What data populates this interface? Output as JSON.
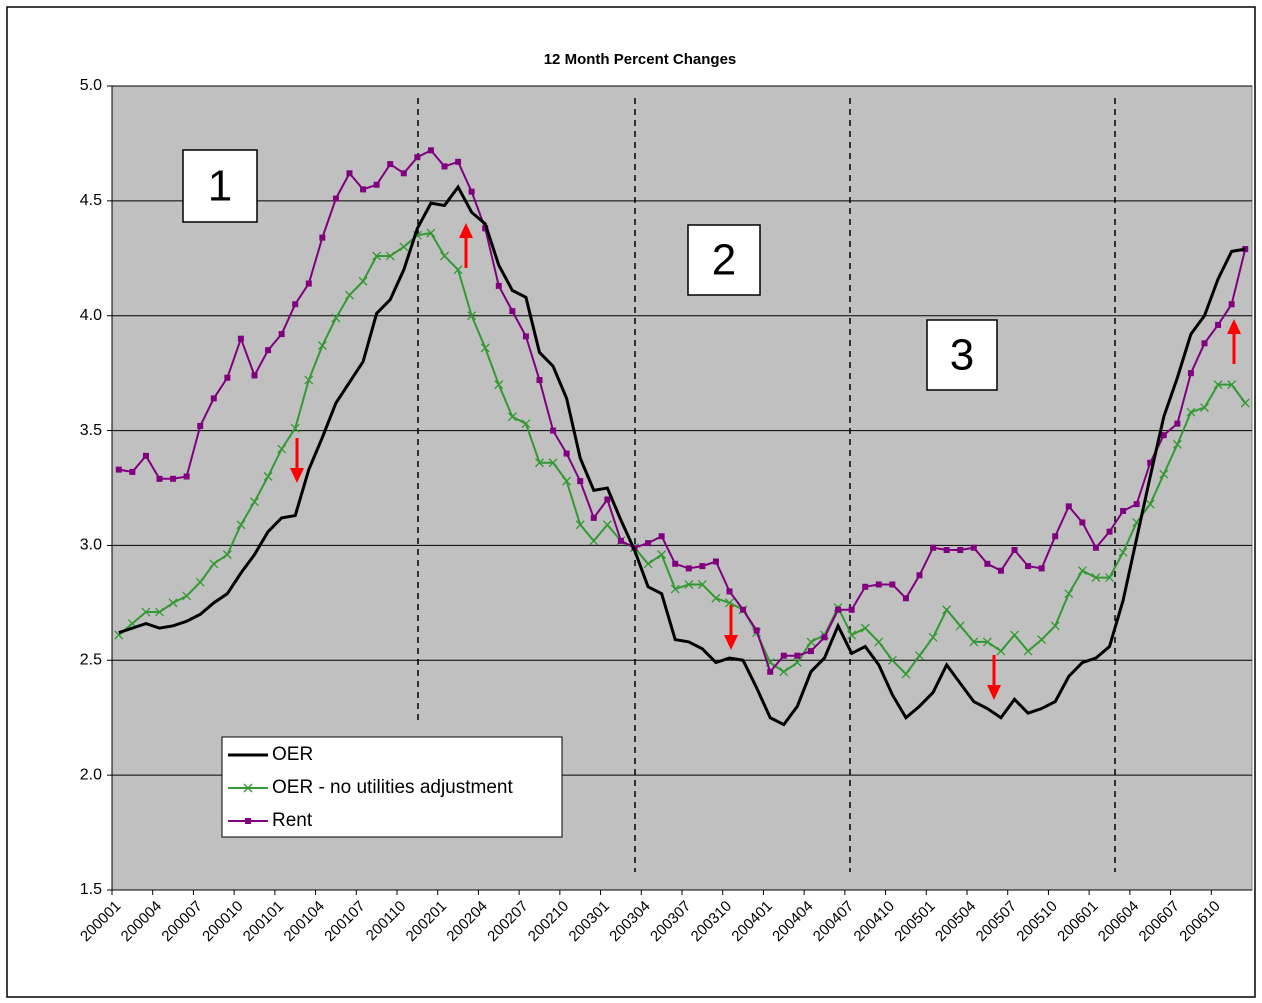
{
  "chart_data": {
    "type": "line",
    "title": "12 Month Percent Changes",
    "categories": [
      "200001",
      null,
      null,
      "200004",
      null,
      null,
      "200007",
      null,
      null,
      "200010",
      null,
      null,
      "200101",
      null,
      null,
      "200104",
      null,
      null,
      "200107",
      null,
      null,
      "200110",
      null,
      null,
      "200201",
      null,
      null,
      "200204",
      null,
      null,
      "200207",
      null,
      null,
      "200210",
      null,
      null,
      "200301",
      null,
      null,
      "200304",
      null,
      null,
      "200307",
      null,
      null,
      "200310",
      null,
      null,
      "200401",
      null,
      null,
      "200404",
      null,
      null,
      "200407",
      null,
      null,
      "200410",
      null,
      null,
      "200501",
      null,
      null,
      "200504",
      null,
      null,
      "200507",
      null,
      null,
      "200510",
      null,
      null,
      "200601",
      null,
      null,
      "200604",
      null,
      null,
      "200607",
      null,
      null,
      "200610",
      null,
      null
    ],
    "series": [
      {
        "name": "OER",
        "color": "#000000",
        "marker": "none",
        "values": [
          2.62,
          2.64,
          2.66,
          2.64,
          2.65,
          2.67,
          2.7,
          2.75,
          2.79,
          2.88,
          2.96,
          3.06,
          3.12,
          3.13,
          3.33,
          3.47,
          3.62,
          3.71,
          3.8,
          4.01,
          4.07,
          4.2,
          4.38,
          4.49,
          4.48,
          4.56,
          4.45,
          4.4,
          4.22,
          4.11,
          4.08,
          3.84,
          3.78,
          3.64,
          3.38,
          3.24,
          3.25,
          3.11,
          2.98,
          2.82,
          2.79,
          2.59,
          2.58,
          2.55,
          2.49,
          2.51,
          2.5,
          2.38,
          2.25,
          2.22,
          2.3,
          2.45,
          2.51,
          2.65,
          2.53,
          2.56,
          2.48,
          2.35,
          2.25,
          2.3,
          2.36,
          2.48,
          2.4,
          2.32,
          2.29,
          2.25,
          2.33,
          2.27,
          2.29,
          2.32,
          2.43,
          2.49,
          2.51,
          2.56,
          2.76,
          3.03,
          3.3,
          3.56,
          3.73,
          3.92,
          4.0,
          4.16,
          4.28,
          4.29
        ]
      },
      {
        "name": "OER - no utilities adjustment",
        "color": "#339933",
        "marker": "x",
        "values": [
          2.61,
          2.66,
          2.71,
          2.71,
          2.75,
          2.78,
          2.84,
          2.92,
          2.96,
          3.09,
          3.19,
          3.3,
          3.42,
          3.51,
          3.72,
          3.87,
          3.99,
          4.09,
          4.15,
          4.26,
          4.26,
          4.3,
          4.35,
          4.36,
          4.26,
          4.2,
          4.0,
          3.86,
          3.7,
          3.56,
          3.53,
          3.36,
          3.36,
          3.28,
          3.09,
          3.02,
          3.09,
          3.02,
          2.99,
          2.92,
          2.96,
          2.81,
          2.83,
          2.83,
          2.77,
          2.75,
          2.72,
          2.62,
          2.49,
          2.45,
          2.49,
          2.58,
          2.61,
          2.73,
          2.61,
          2.64,
          2.58,
          2.5,
          2.44,
          2.52,
          2.6,
          2.72,
          2.65,
          2.58,
          2.58,
          2.54,
          2.61,
          2.54,
          2.59,
          2.65,
          2.79,
          2.89,
          2.86,
          2.86,
          2.97,
          3.1,
          3.18,
          3.31,
          3.44,
          3.58,
          3.6,
          3.7,
          3.7,
          3.62
        ]
      },
      {
        "name": "Rent",
        "color": "#800080",
        "marker": "square",
        "values": [
          3.33,
          3.32,
          3.39,
          3.29,
          3.29,
          3.3,
          3.52,
          3.64,
          3.73,
          3.9,
          3.74,
          3.85,
          3.92,
          4.05,
          4.14,
          4.34,
          4.51,
          4.62,
          4.55,
          4.57,
          4.66,
          4.62,
          4.69,
          4.72,
          4.65,
          4.67,
          4.54,
          4.38,
          4.13,
          4.02,
          3.91,
          3.72,
          3.5,
          3.4,
          3.28,
          3.12,
          3.2,
          3.02,
          2.99,
          3.01,
          3.04,
          2.92,
          2.9,
          2.91,
          2.93,
          2.8,
          2.72,
          2.63,
          2.45,
          2.52,
          2.52,
          2.54,
          2.6,
          2.72,
          2.72,
          2.82,
          2.83,
          2.83,
          2.77,
          2.87,
          2.99,
          2.98,
          2.98,
          2.99,
          2.92,
          2.89,
          2.98,
          2.91,
          2.9,
          3.04,
          3.17,
          3.1,
          2.99,
          3.06,
          3.15,
          3.18,
          3.36,
          3.48,
          3.53,
          3.75,
          3.88,
          3.96,
          4.05,
          4.29
        ]
      }
    ],
    "ylim": [
      1.5,
      5.0
    ],
    "yticks": [
      {
        "value": 1.5,
        "label": "1.5"
      },
      {
        "value": 2,
        "label": "2.0"
      },
      {
        "value": 2.5,
        "label": "2.5"
      },
      {
        "value": 3,
        "label": "3.0"
      },
      {
        "value": 3.5,
        "label": "3.5"
      },
      {
        "value": 4,
        "label": "4.0"
      },
      {
        "value": 4.5,
        "label": "4.5"
      },
      {
        "value": 5,
        "label": "5.0"
      }
    ],
    "grid": true,
    "legend": "lower left",
    "annotations": [
      "1",
      "2",
      "3"
    ]
  }
}
